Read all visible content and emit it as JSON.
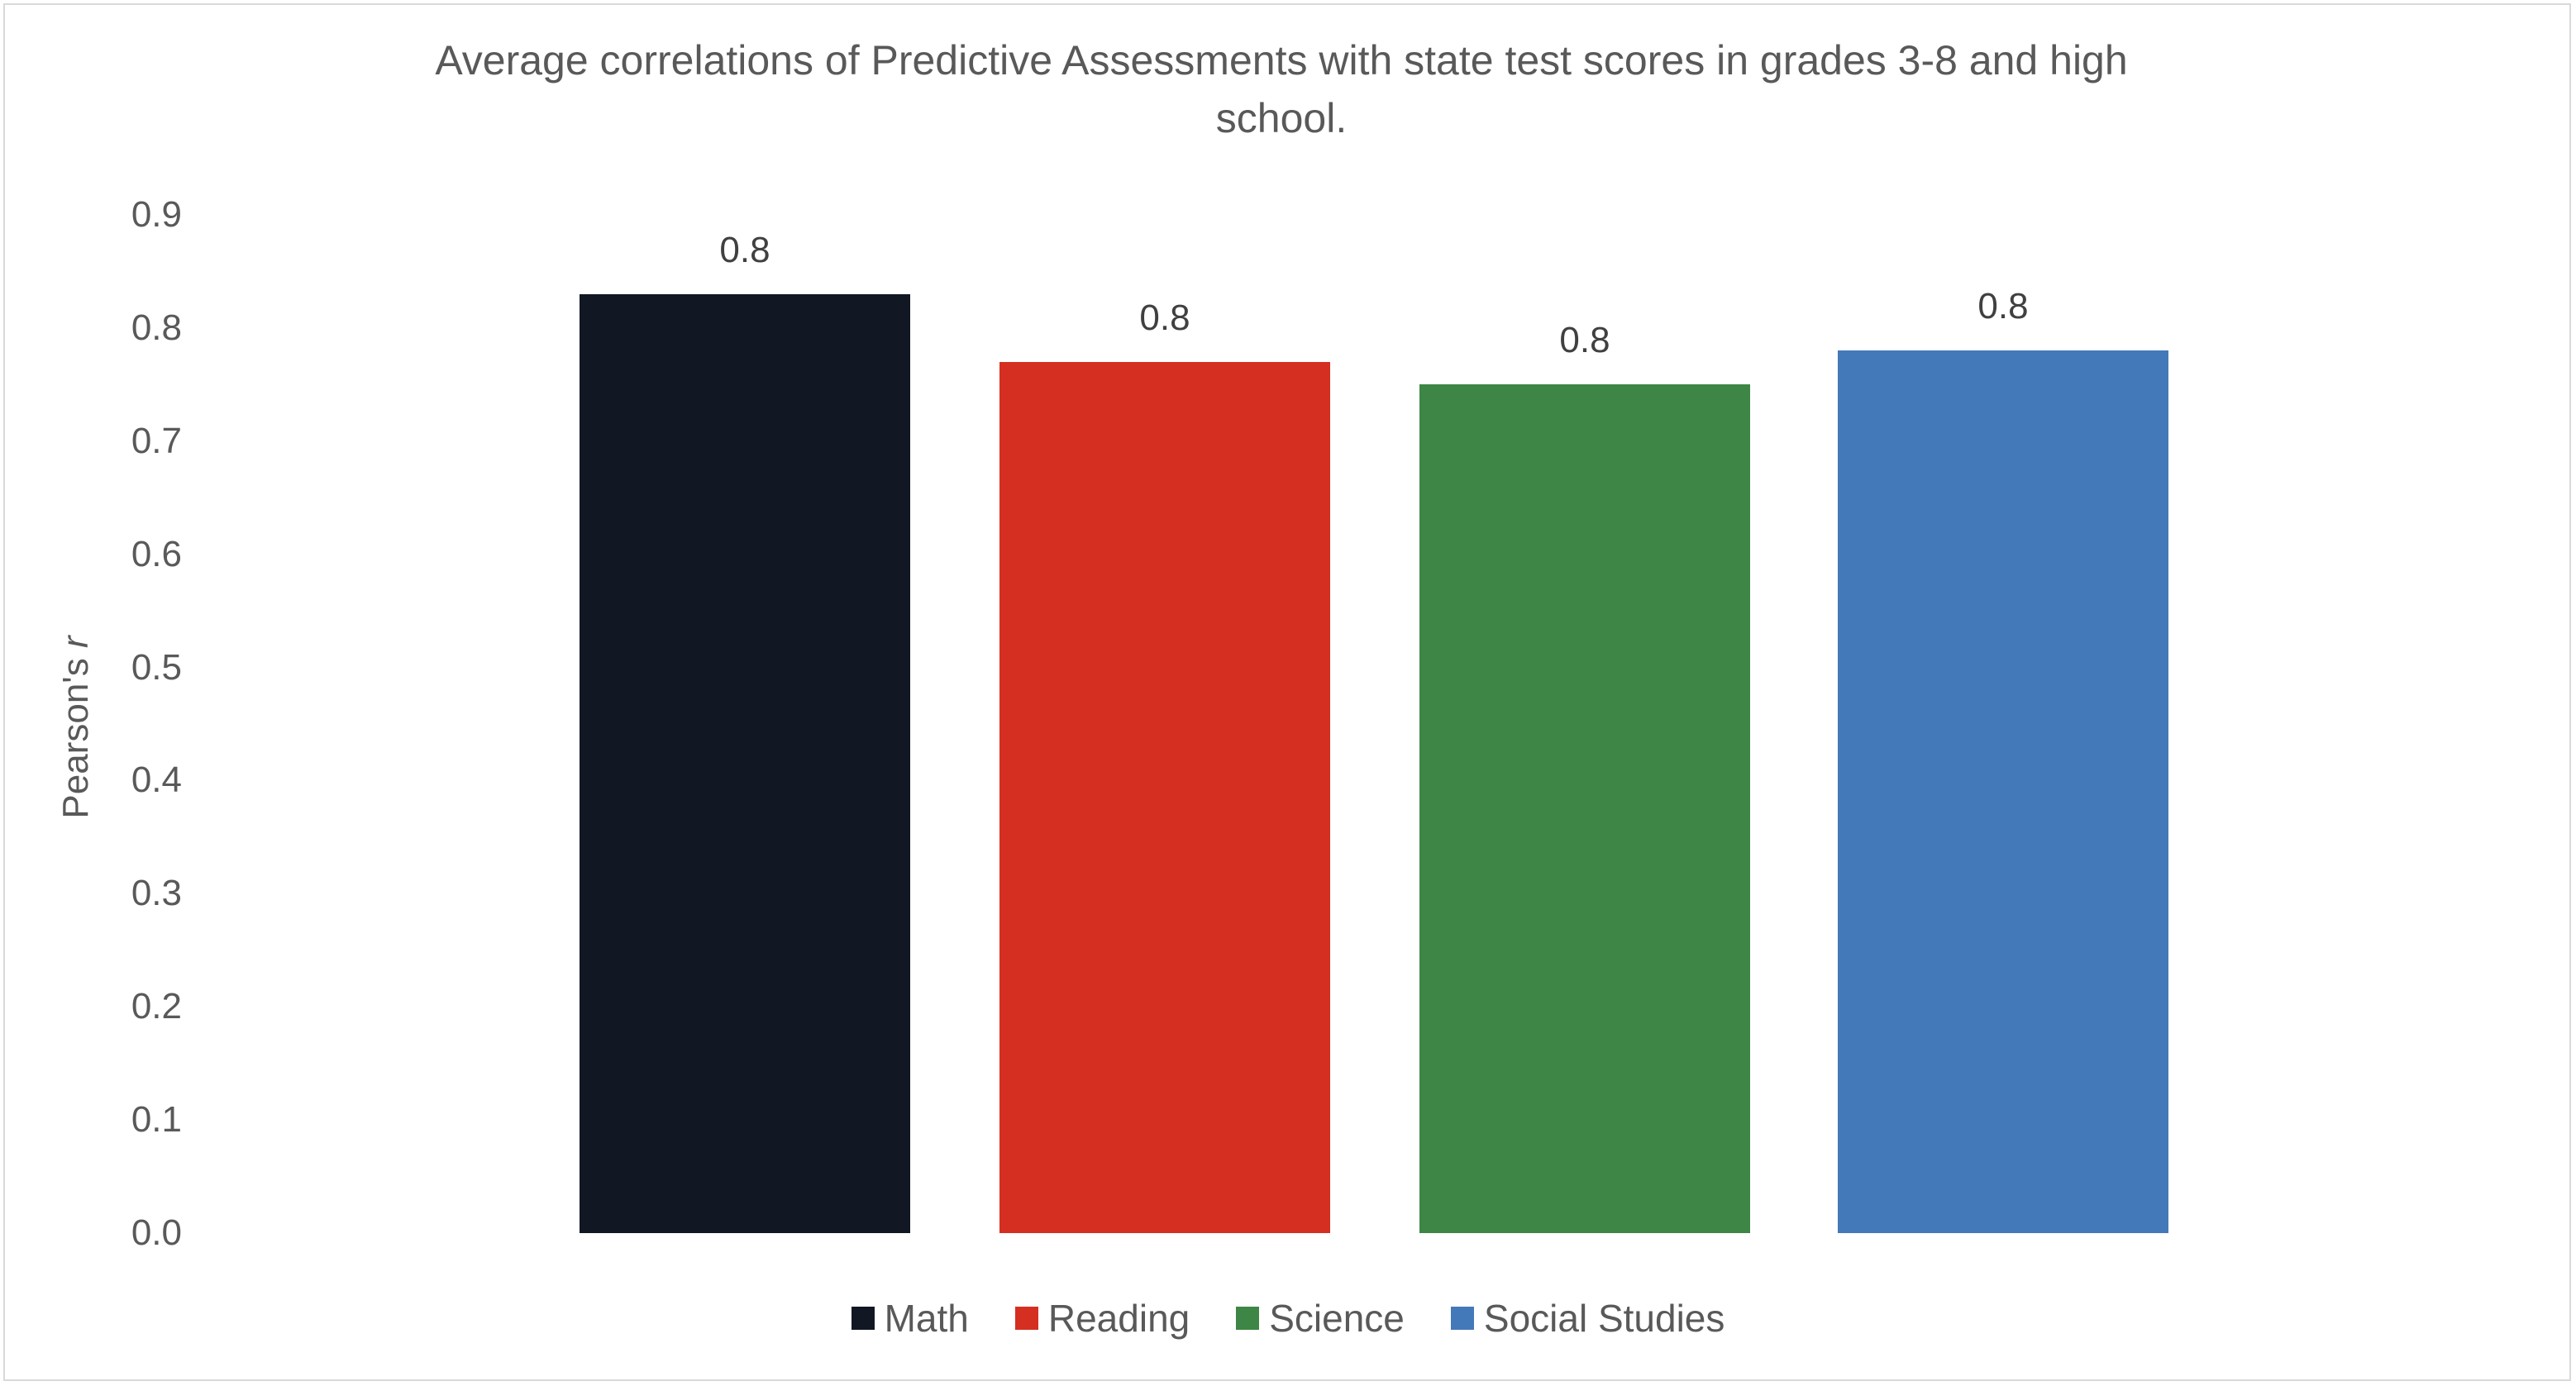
{
  "chart_data": {
    "type": "bar",
    "title": "Average correlations of Predictive Assessments with state test scores in grades 3-8 and high school.",
    "title_lines": [
      "Average correlations of Predictive Assessments with state test scores in grades 3-8 and high",
      "school."
    ],
    "xlabel": "",
    "ylabel": "Pearson's r",
    "ylabel_prefix": "Pearson's ",
    "ylabel_italic": "r",
    "ylim": [
      0,
      0.9
    ],
    "yticks": [
      "0.0",
      "0.1",
      "0.2",
      "0.3",
      "0.4",
      "0.5",
      "0.6",
      "0.7",
      "0.8",
      "0.9"
    ],
    "grid": false,
    "legend_position": "bottom",
    "categories": [
      "Math",
      "Reading",
      "Science",
      "Social Studies"
    ],
    "values": [
      0.83,
      0.77,
      0.75,
      0.78
    ],
    "data_labels": [
      "0.8",
      "0.8",
      "0.8",
      "0.8"
    ],
    "colors": [
      "#111723",
      "#d52f21",
      "#3e8646",
      "#4479b9"
    ]
  },
  "legend": [
    {
      "label": "Math",
      "color": "#111723"
    },
    {
      "label": "Reading",
      "color": "#d52f21"
    },
    {
      "label": "Science",
      "color": "#3e8646"
    },
    {
      "label": "Social Studies",
      "color": "#4479b9"
    }
  ]
}
